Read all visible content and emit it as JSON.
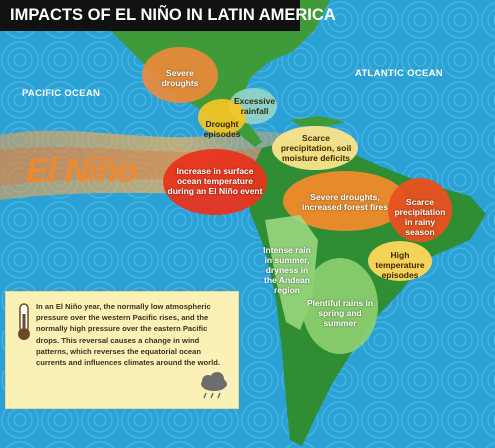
{
  "header": {
    "title": "IMPACTS OF EL NIÑO IN LATIN AMERICA"
  },
  "oceans": [
    "PACIFIC OCEAN",
    "ATLANTIC OCEAN"
  ],
  "el_nino_label": "El Niño",
  "regions": [
    {
      "label": "Severe droughts"
    },
    {
      "label": "Excessive rainfall"
    },
    {
      "label": "Drought episodes"
    },
    {
      "label": "Scarce precipitation, soil moisture deficits"
    },
    {
      "label": "Increase in surface ocean temperature during an El Niño event"
    },
    {
      "label": "Severe droughts, increased forest fires"
    },
    {
      "label": "Scarce precipitation in rainy season"
    },
    {
      "label": "High temperature episodes"
    },
    {
      "label": "Intense rain in summer, dryness in the Andean region"
    },
    {
      "label": "Plentiful rains in spring and summer"
    }
  ],
  "info_box": {
    "text": "In an El Niño year, the normally low atmospheric pressure over the western Pacific rises, and the normally high pressure over the eastern Pacific drops. This reversal causes a change in wind patterns, which reverses the equatorial ocean currents and influences climates around the world."
  }
}
